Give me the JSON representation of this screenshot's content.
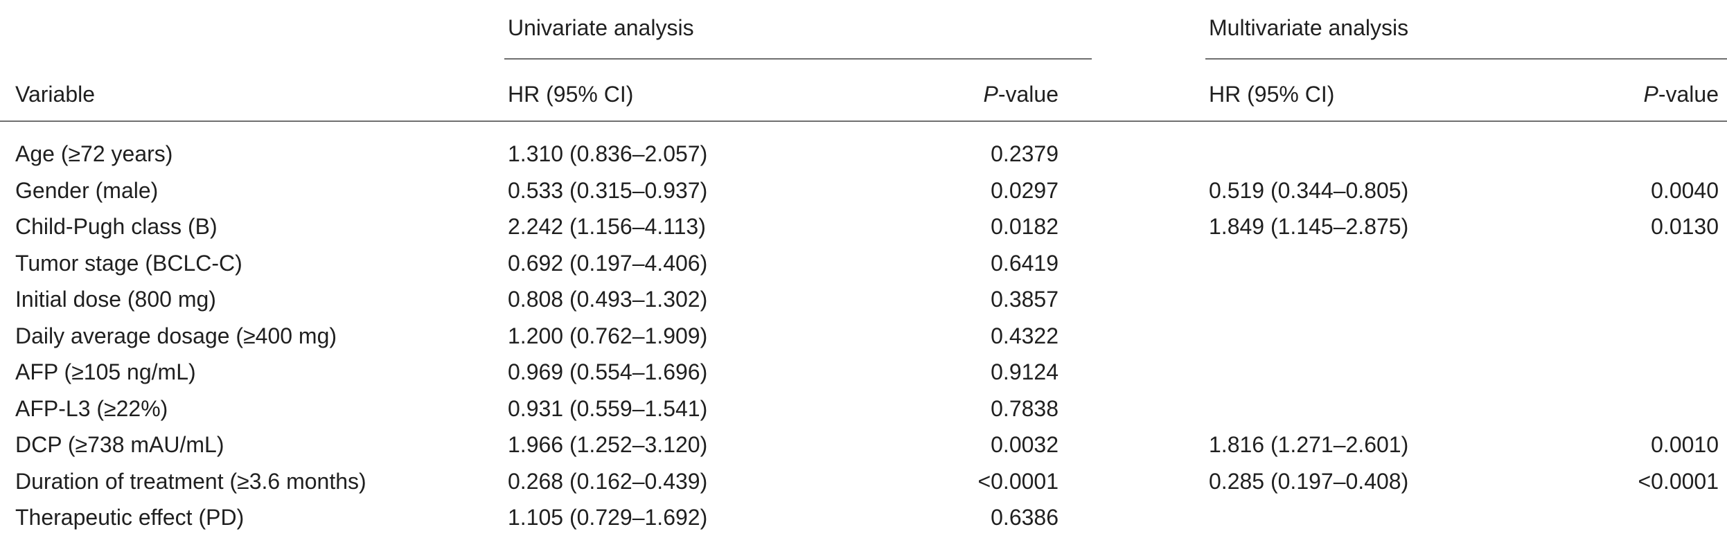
{
  "table": {
    "group_headers": {
      "univariate": "Univariate analysis",
      "multivariate": "Multivariate analysis"
    },
    "column_headers": {
      "variable": "Variable",
      "uni_hr": "HR (95% CI)",
      "uni_p_italic": "P",
      "uni_p_rest": "-value",
      "multi_hr": "HR (95% CI)",
      "multi_p_italic": "P",
      "multi_p_rest": "-value"
    },
    "rows": [
      {
        "variable": "Age (≥72 years)",
        "uni_hr": "1.310 (0.836–2.057)",
        "uni_p": "0.2379",
        "multi_hr": "",
        "multi_p": ""
      },
      {
        "variable": "Gender (male)",
        "uni_hr": "0.533 (0.315–0.937)",
        "uni_p": "0.0297",
        "multi_hr": "0.519 (0.344–0.805)",
        "multi_p": "0.0040"
      },
      {
        "variable": "Child-Pugh class (B)",
        "uni_hr": "2.242 (1.156–4.113)",
        "uni_p": "0.0182",
        "multi_hr": "1.849 (1.145–2.875)",
        "multi_p": "0.0130"
      },
      {
        "variable": "Tumor stage (BCLC-C)",
        "uni_hr": "0.692 (0.197–4.406)",
        "uni_p": "0.6419",
        "multi_hr": "",
        "multi_p": ""
      },
      {
        "variable": "Initial dose (800 mg)",
        "uni_hr": "0.808 (0.493–1.302)",
        "uni_p": "0.3857",
        "multi_hr": "",
        "multi_p": ""
      },
      {
        "variable": "Daily average dosage (≥400 mg)",
        "uni_hr": "1.200 (0.762–1.909)",
        "uni_p": "0.4322",
        "multi_hr": "",
        "multi_p": ""
      },
      {
        "variable": "AFP (≥105 ng/mL)",
        "uni_hr": "0.969 (0.554–1.696)",
        "uni_p": "0.9124",
        "multi_hr": "",
        "multi_p": ""
      },
      {
        "variable": "AFP-L3 (≥22%)",
        "uni_hr": "0.931 (0.559–1.541)",
        "uni_p": "0.7838",
        "multi_hr": "",
        "multi_p": ""
      },
      {
        "variable": "DCP (≥738 mAU/mL)",
        "uni_hr": "1.966 (1.252–3.120)",
        "uni_p": "0.0032",
        "multi_hr": "1.816 (1.271–2.601)",
        "multi_p": "0.0010"
      },
      {
        "variable": "Duration of treatment (≥3.6 months)",
        "uni_hr": "0.268 (0.162–0.439)",
        "uni_p": "<0.0001",
        "multi_hr": "0.285 (0.197–0.408)",
        "multi_p": "<0.0001"
      },
      {
        "variable": "Therapeutic effect (PD)",
        "uni_hr": "1.105 (0.729–1.692)",
        "uni_p": "0.6386",
        "multi_hr": "",
        "multi_p": ""
      }
    ]
  }
}
